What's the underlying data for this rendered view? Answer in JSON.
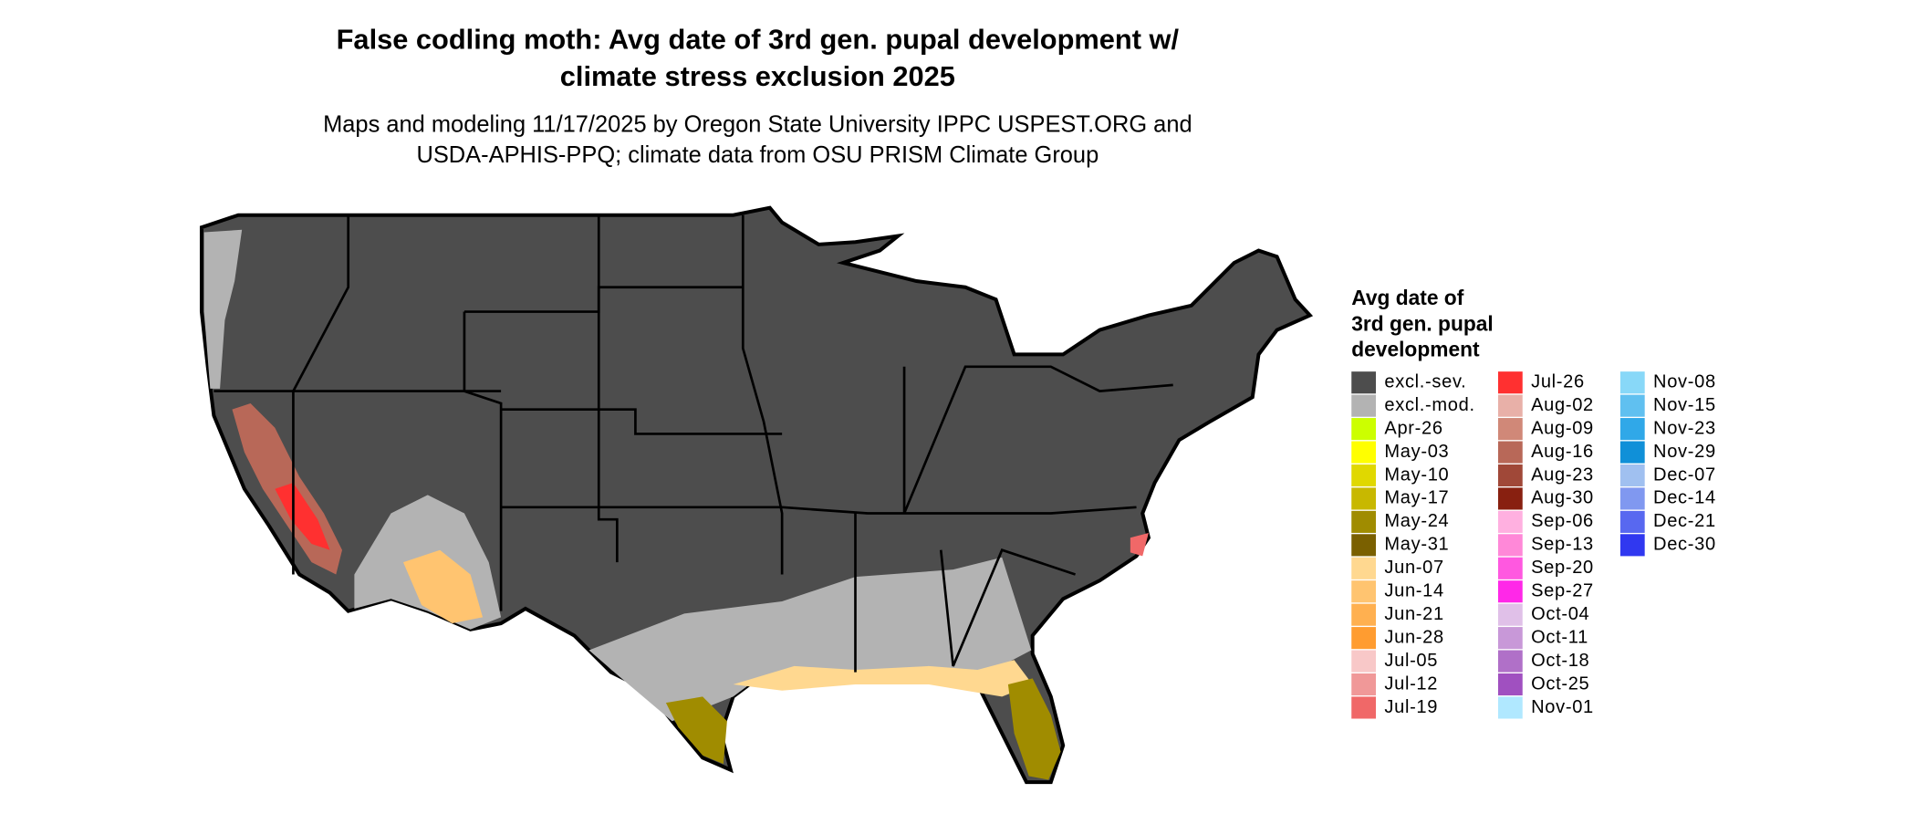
{
  "header": {
    "title": [
      "False codling moth: Avg date of 3rd gen. pupal development w/",
      "climate stress exclusion 2025"
    ],
    "subtitle": [
      "Maps and modeling 11/17/2025 by Oregon State University IPPC USPEST.ORG and",
      "USDA-APHIS-PPQ; climate data from OSU PRISM Climate Group"
    ]
  },
  "legend": {
    "title": [
      "Avg date of",
      "3rd gen. pupal",
      "development"
    ],
    "items": [
      {
        "label": "excl.-sev.",
        "color": "#4d4d4d"
      },
      {
        "label": "excl.-mod.",
        "color": "#b3b3b3"
      },
      {
        "label": "Apr-26",
        "color": "#ccff00"
      },
      {
        "label": "May-03",
        "color": "#ffff00"
      },
      {
        "label": "May-10",
        "color": "#e0d800"
      },
      {
        "label": "May-17",
        "color": "#c8b800"
      },
      {
        "label": "May-24",
        "color": "#a08c00"
      },
      {
        "label": "May-31",
        "color": "#7a6000"
      },
      {
        "label": "Jun-07",
        "color": "#ffd890"
      },
      {
        "label": "Jun-14",
        "color": "#ffc470"
      },
      {
        "label": "Jun-21",
        "color": "#ffb050"
      },
      {
        "label": "Jun-28",
        "color": "#ff9c30"
      },
      {
        "label": "Jul-05",
        "color": "#f8c8c8"
      },
      {
        "label": "Jul-12",
        "color": "#f09898"
      },
      {
        "label": "Jul-19",
        "color": "#f06868"
      },
      {
        "label": "Jul-26",
        "color": "#ff3030"
      },
      {
        "label": "Aug-02",
        "color": "#e8b0a8"
      },
      {
        "label": "Aug-09",
        "color": "#d08878"
      },
      {
        "label": "Aug-16",
        "color": "#b86858"
      },
      {
        "label": "Aug-23",
        "color": "#a04838"
      },
      {
        "label": "Aug-30",
        "color": "#882010"
      },
      {
        "label": "Sep-06",
        "color": "#ffb0e0"
      },
      {
        "label": "Sep-13",
        "color": "#ff88d8"
      },
      {
        "label": "Sep-20",
        "color": "#ff58e0"
      },
      {
        "label": "Sep-27",
        "color": "#ff28e8"
      },
      {
        "label": "Oct-04",
        "color": "#e0c0e8"
      },
      {
        "label": "Oct-11",
        "color": "#c898d8"
      },
      {
        "label": "Oct-18",
        "color": "#b070c8"
      },
      {
        "label": "Oct-25",
        "color": "#a050c0"
      },
      {
        "label": "Nov-01",
        "color": "#b0e8ff"
      },
      {
        "label": "Nov-08",
        "color": "#88d8f8"
      },
      {
        "label": "Nov-15",
        "color": "#60c0f0"
      },
      {
        "label": "Nov-23",
        "color": "#30a8e8"
      },
      {
        "label": "Nov-29",
        "color": "#1090d8"
      },
      {
        "label": "Dec-07",
        "color": "#a0c0f0"
      },
      {
        "label": "Dec-14",
        "color": "#8098f0"
      },
      {
        "label": "Dec-21",
        "color": "#5868f0"
      },
      {
        "label": "Dec-30",
        "color": "#3038f0"
      }
    ]
  }
}
